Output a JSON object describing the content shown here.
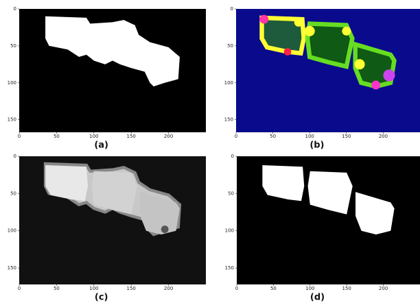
{
  "panels": [
    {
      "label": "(a)",
      "xticks": [
        0,
        50,
        100,
        150,
        200
      ],
      "yticks": [
        0,
        50,
        100,
        150
      ],
      "xlim": [
        0,
        250
      ],
      "ylim": [
        0,
        167
      ]
    },
    {
      "label": "(b)",
      "xticks": [
        0,
        50,
        100,
        150,
        200
      ],
      "yticks": [
        0,
        50,
        100,
        150
      ],
      "xlim": [
        0,
        250
      ],
      "ylim": [
        0,
        167
      ]
    },
    {
      "label": "(c)",
      "xticks": [
        0,
        50,
        100,
        150,
        200
      ],
      "yticks": [
        0,
        50,
        100,
        150
      ],
      "xlim": [
        0,
        250
      ],
      "ylim": [
        0,
        172
      ]
    },
    {
      "label": "(d)",
      "xticks": [
        0,
        50,
        100,
        150,
        200
      ],
      "yticks": [
        0,
        50,
        100,
        150
      ],
      "xlim": [
        0,
        250
      ],
      "ylim": [
        0,
        172
      ]
    }
  ]
}
